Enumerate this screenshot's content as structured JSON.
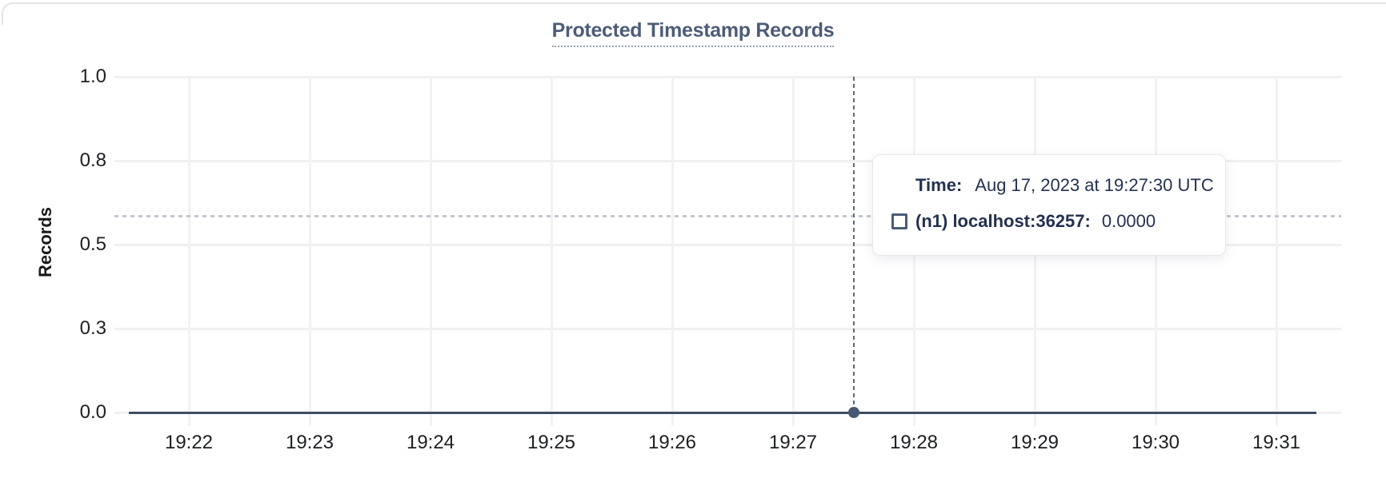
{
  "chart_data": {
    "type": "line",
    "title": "Protected Timestamp Records",
    "xlabel": "",
    "ylabel": "Records",
    "x_tick_labels": [
      "19:22",
      "19:23",
      "19:24",
      "19:25",
      "19:26",
      "19:27",
      "19:28",
      "19:29",
      "19:30",
      "19:31"
    ],
    "y_tick_labels": [
      "1.0",
      "0.8",
      "0.5",
      "0.3",
      "0.0"
    ],
    "ylim": [
      0,
      1
    ],
    "grid": true,
    "legend_position": "none",
    "series": [
      {
        "name": "(n1) localhost:36257",
        "color": "#3f4c64",
        "x_start": "19:21:30",
        "x_end": "19:31:20",
        "x_samples": [
          "19:22",
          "19:23",
          "19:24",
          "19:25",
          "19:26",
          "19:27",
          "19:28",
          "19:29",
          "19:30",
          "19:31"
        ],
        "values": [
          0,
          0,
          0,
          0,
          0,
          0,
          0,
          0,
          0,
          0
        ]
      }
    ],
    "hovered_point": {
      "time": "19:27:30",
      "value": 0,
      "value_formatted": "0.0000"
    }
  },
  "tooltip": {
    "time_label": "Time:",
    "time_value": "Aug 17, 2023 at 19:27:30 UTC",
    "series_label": "(n1) localhost:36257:",
    "series_value": "0.0000"
  },
  "colors": {
    "title": "#4d5c77",
    "series_line": "#3f4c64",
    "hover_dot": "#475872",
    "crosshair": "#5a6b7c",
    "guideline": "#c2c8d1",
    "gridline_h": "#f0f0f1",
    "gridline_v": "#f2f2f3",
    "axis_text": "#1c1f23",
    "tooltip_text": "#233150",
    "tooltip_border": "#e5e8ec",
    "checkbox": "#4b5b75",
    "card_border": "#e4e4e9"
  }
}
